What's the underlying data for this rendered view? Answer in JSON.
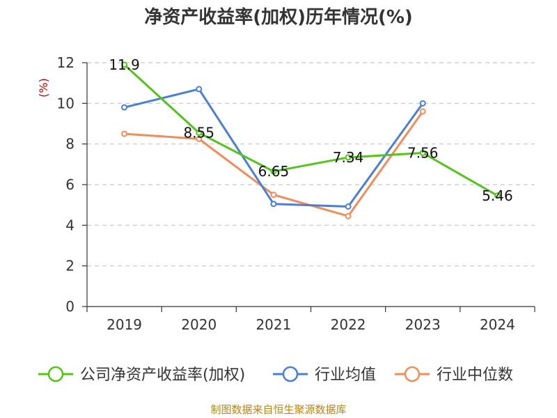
{
  "chart_data": {
    "type": "line",
    "title": "净资产收益率(加权)历年情况(%)",
    "ylabel": "(%)",
    "xlabel": "",
    "categories": [
      "2019",
      "2020",
      "2021",
      "2022",
      "2023",
      "2024"
    ],
    "ylim": [
      0,
      12
    ],
    "yticks": [
      0,
      2,
      4,
      6,
      8,
      10,
      12
    ],
    "grid": true,
    "legend_position": "bottom",
    "series": [
      {
        "name": "公司净资产收益率(加权)",
        "color": "#52c41a",
        "values": [
          11.9,
          8.55,
          6.65,
          7.34,
          7.56,
          5.46
        ],
        "labels": [
          "11.9",
          "8.55",
          "6.65",
          "7.34",
          "7.56",
          "5.46"
        ]
      },
      {
        "name": "行业均值",
        "color": "#4a7fd4",
        "values": [
          9.8,
          10.7,
          5.05,
          4.92,
          10.0,
          null
        ]
      },
      {
        "name": "行业中位数",
        "color": "#f28c5b",
        "values": [
          8.5,
          8.25,
          5.5,
          4.45,
          9.6,
          null
        ]
      }
    ],
    "source": "制图数据来自恒生聚源数据库"
  }
}
